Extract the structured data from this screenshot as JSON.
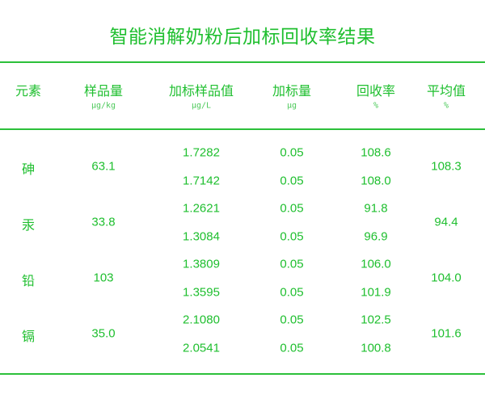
{
  "title": "智能消解奶粉后加标回收率结果",
  "accent_color": "#1fbf2f",
  "columns": [
    {
      "label": "元素",
      "unit": ""
    },
    {
      "label": "样品量",
      "unit": "μg/kg"
    },
    {
      "label": "加标样品值",
      "unit": "μg/L"
    },
    {
      "label": "加标量",
      "unit": "μg"
    },
    {
      "label": "回收率",
      "unit": "%"
    },
    {
      "label": "平均值",
      "unit": "%"
    }
  ],
  "groups": [
    {
      "element": "砷",
      "sample": "63.1",
      "rows": [
        {
          "spiked": "1.7282",
          "added": "0.05",
          "recovery": "108.6"
        },
        {
          "spiked": "1.7142",
          "added": "0.05",
          "recovery": "108.0"
        }
      ],
      "average": "108.3"
    },
    {
      "element": "汞",
      "sample": "33.8",
      "rows": [
        {
          "spiked": "1.2621",
          "added": "0.05",
          "recovery": "91.8"
        },
        {
          "spiked": "1.3084",
          "added": "0.05",
          "recovery": "96.9"
        }
      ],
      "average": "94.4"
    },
    {
      "element": "铅",
      "sample": "103",
      "rows": [
        {
          "spiked": "1.3809",
          "added": "0.05",
          "recovery": "106.0"
        },
        {
          "spiked": "1.3595",
          "added": "0.05",
          "recovery": "101.9"
        }
      ],
      "average": "104.0"
    },
    {
      "element": "镉",
      "sample": "35.0",
      "rows": [
        {
          "spiked": "2.1080",
          "added": "0.05",
          "recovery": "102.5"
        },
        {
          "spiked": "2.0541",
          "added": "0.05",
          "recovery": "100.8"
        }
      ],
      "average": "101.6"
    }
  ]
}
